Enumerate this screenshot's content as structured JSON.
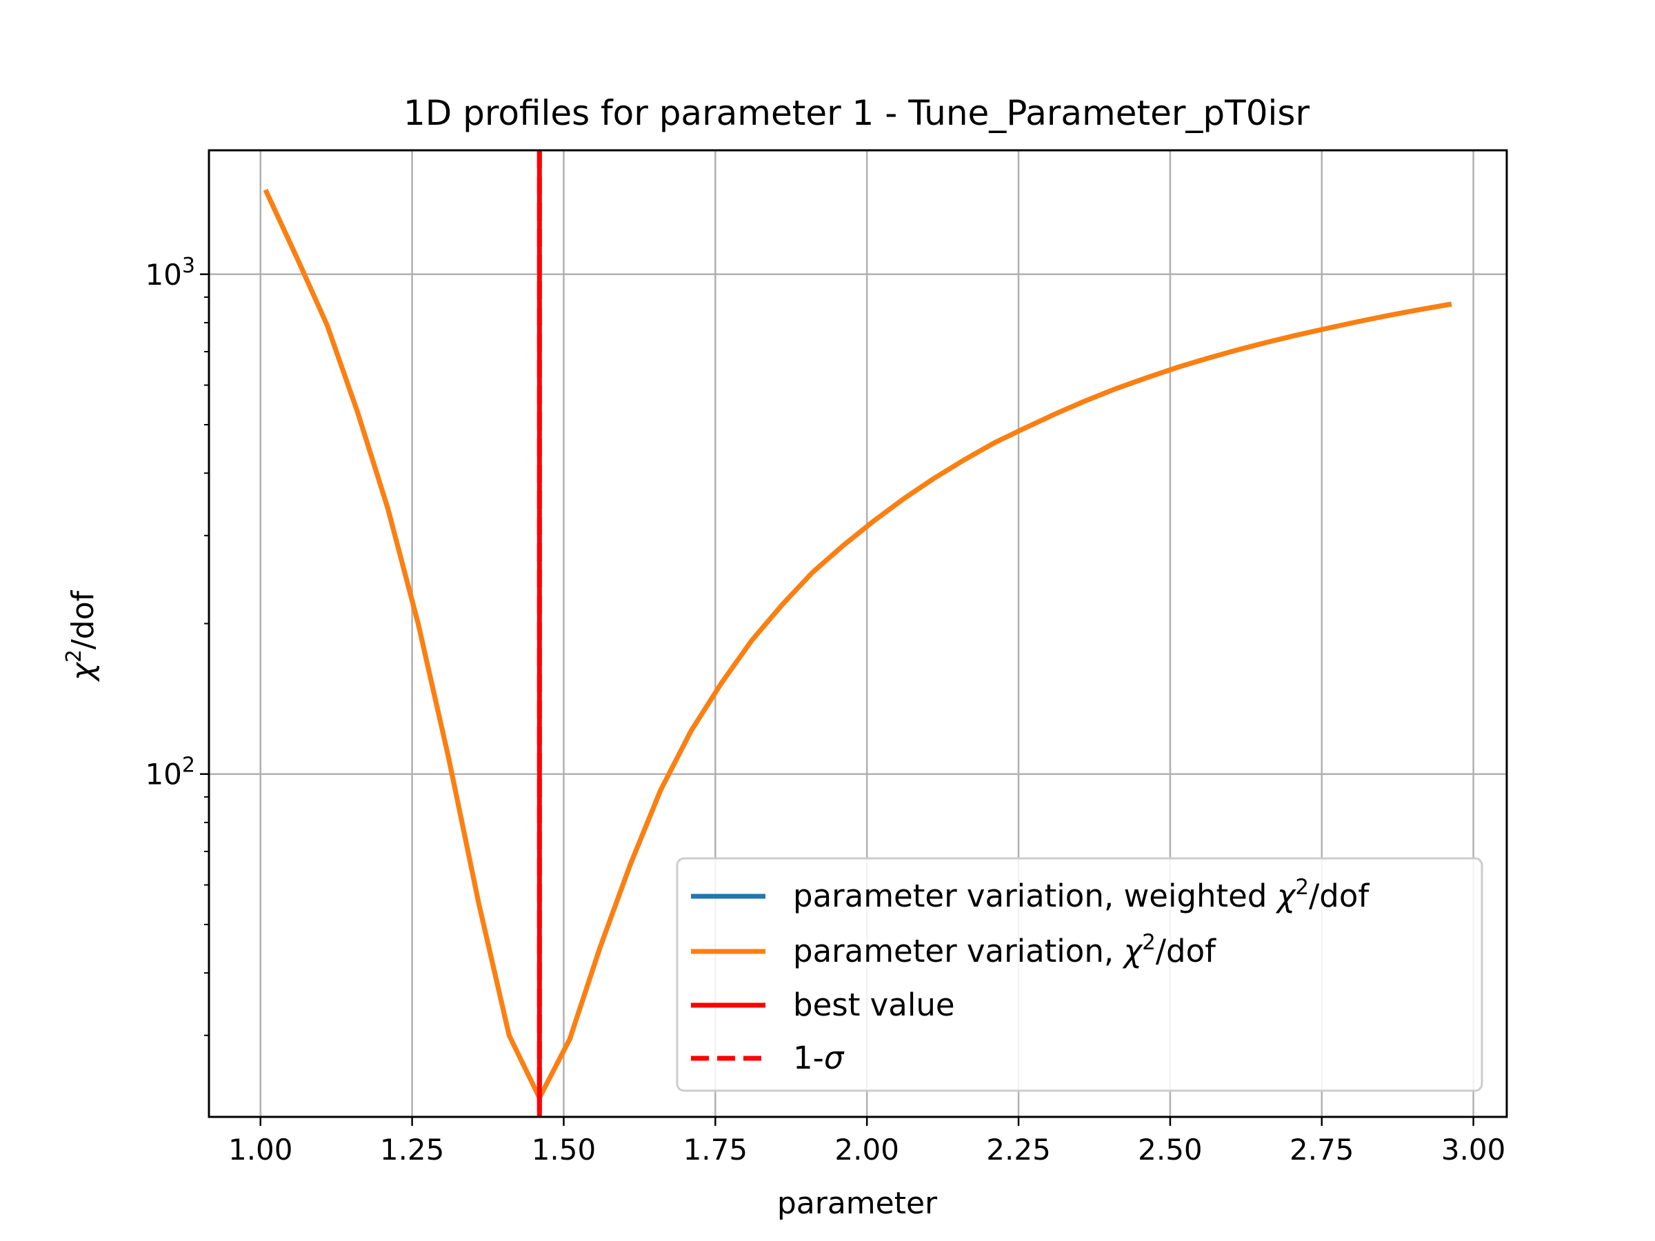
{
  "chart_data": {
    "type": "line",
    "title": "1D profiles for parameter 1 - Tune_Parameter_pT0isr",
    "xlabel": "parameter",
    "ylabel_base": "χ",
    "ylabel_sup": "2",
    "ylabel_rest": "/dof",
    "xscale": "linear",
    "yscale": "log",
    "xlim": [
      0.915,
      3.055
    ],
    "ylim_log10": [
      1.314,
      3.248
    ],
    "grid": true,
    "x_ticks": [
      1.0,
      1.25,
      1.5,
      1.75,
      2.0,
      2.25,
      2.5,
      2.75,
      3.0
    ],
    "x_tick_labels": [
      "1.00",
      "1.25",
      "1.50",
      "1.75",
      "2.00",
      "2.25",
      "2.50",
      "2.75",
      "3.00"
    ],
    "y_ticks": [
      {
        "value": 100,
        "base": "10",
        "exp": "2"
      },
      {
        "value": 1000,
        "base": "10",
        "exp": "3"
      }
    ],
    "y_minor_ticks": [
      30,
      40,
      50,
      60,
      70,
      80,
      90,
      200,
      300,
      400,
      500,
      600,
      700,
      800,
      900
    ],
    "series": [
      {
        "name": "parameter variation, weighted χ²/dof",
        "legend_pre": "parameter variation, weighted ",
        "legend_chi": "χ",
        "legend_sup": "2",
        "legend_post": "/dof",
        "color": "#1f77b4",
        "style": "solid",
        "x": [
          1.01,
          1.06,
          1.11,
          1.16,
          1.21,
          1.26,
          1.31,
          1.36,
          1.41,
          1.46,
          1.51,
          1.56,
          1.61,
          1.66,
          1.71,
          1.76,
          1.81,
          1.86,
          1.91,
          1.96,
          2.01,
          2.06,
          2.11,
          2.16,
          2.21,
          2.26,
          2.31,
          2.36,
          2.41,
          2.46,
          2.51,
          2.56,
          2.61,
          2.66,
          2.71,
          2.76,
          2.81,
          2.86,
          2.91,
          2.96
        ],
        "y": [
          1460,
          1080,
          790,
          530,
          340,
          200,
          108,
          55,
          30,
          22.5,
          29.5,
          45,
          66,
          93,
          122,
          152,
          185,
          218,
          253,
          286,
          320,
          355,
          390,
          425,
          460,
          492,
          525,
          558,
          590,
          620,
          650,
          678,
          705,
          731,
          756,
          780,
          804,
          827,
          849,
          870
        ]
      },
      {
        "name": "parameter variation, χ²/dof",
        "legend_pre": "parameter variation, ",
        "legend_chi": "χ",
        "legend_sup": "2",
        "legend_post": "/dof",
        "color": "#ff7f0e",
        "style": "solid",
        "x": [
          1.01,
          1.06,
          1.11,
          1.16,
          1.21,
          1.26,
          1.31,
          1.36,
          1.41,
          1.46,
          1.51,
          1.56,
          1.61,
          1.66,
          1.71,
          1.76,
          1.81,
          1.86,
          1.91,
          1.96,
          2.01,
          2.06,
          2.11,
          2.16,
          2.21,
          2.26,
          2.31,
          2.36,
          2.41,
          2.46,
          2.51,
          2.56,
          2.61,
          2.66,
          2.71,
          2.76,
          2.81,
          2.86,
          2.91,
          2.96
        ],
        "y": [
          1460,
          1080,
          790,
          530,
          340,
          200,
          108,
          55,
          30,
          22.5,
          29.5,
          45,
          66,
          93,
          122,
          152,
          185,
          218,
          253,
          286,
          320,
          355,
          390,
          425,
          460,
          492,
          525,
          558,
          590,
          620,
          650,
          678,
          705,
          731,
          756,
          780,
          804,
          827,
          849,
          870
        ]
      }
    ],
    "vlines": [
      {
        "name": "best value",
        "legend_text": "best value",
        "x": 1.46,
        "color": "#ff0000",
        "style": "solid"
      },
      {
        "name": "1-σ",
        "legend_pre": "1-",
        "legend_sigma": "σ",
        "x": 1.46,
        "color": "#ff0000",
        "style": "dashed"
      }
    ],
    "legend_position": "lower-right"
  }
}
